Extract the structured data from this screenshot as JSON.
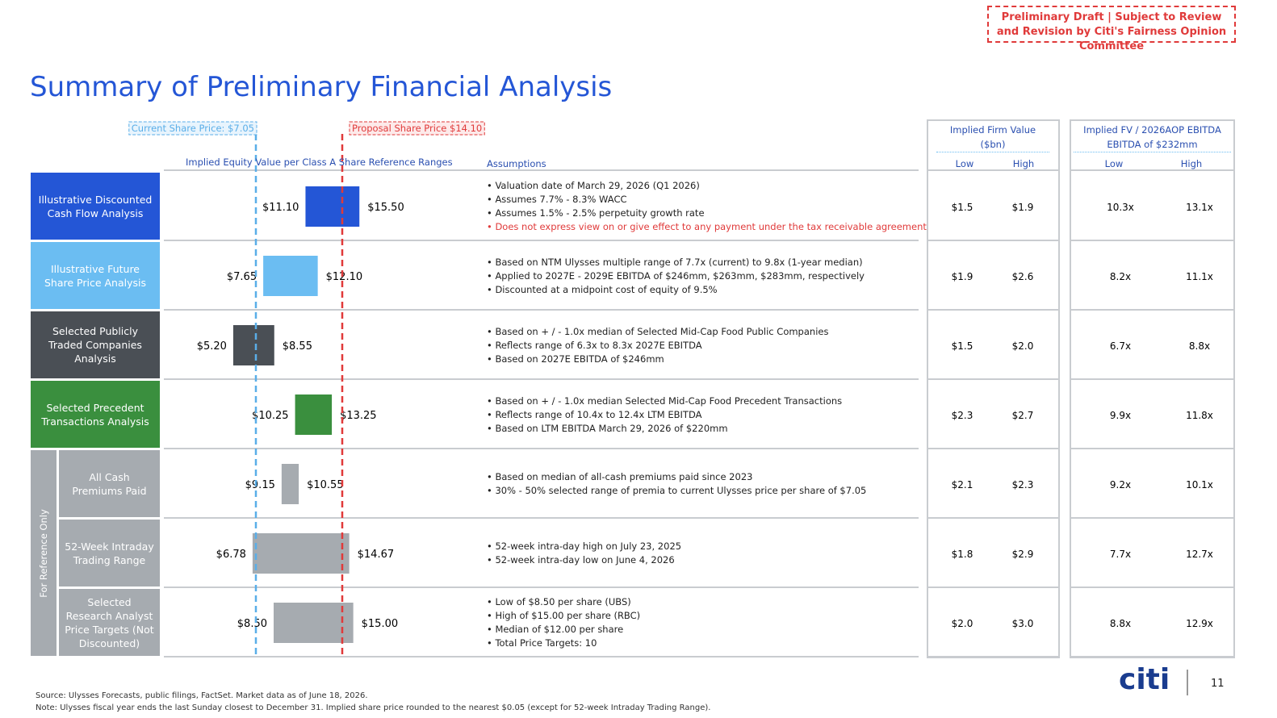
{
  "draft_note": "Preliminary Draft | Subject to Review and Revision by Citi's Fairness Opinion Committee",
  "title": "Summary of Preliminary Financial Analysis",
  "current_price": {
    "label": "Current Share Price: $7.05",
    "value": 7.05,
    "color": "#5aaee8"
  },
  "proposal_price": {
    "label": "Proposal Share Price $14.10",
    "value": 14.1,
    "color": "#e03a3a"
  },
  "xlim": [
    0,
    25.5
  ],
  "chart_header": "Implied Equity Value per Class A Share Reference Ranges",
  "assumptions_header": "Assumptions",
  "fv_header": "Implied Firm Value ($bn)",
  "multiple_header": [
    "Implied FV / 2026AOP EBITDA",
    "EBITDA of $232mm"
  ],
  "low_label": "Low",
  "high_label": "High",
  "reference_group": "For Reference Only",
  "rows": [
    {
      "label": "Illustrative Discounted Cash Flow Analysis",
      "color": "#2456d6",
      "low": 11.1,
      "high": 15.5,
      "low_label": "$11.10",
      "high_label": "$15.50",
      "assumptions": [
        "Valuation date of March 29, 2026 (Q1 2026)",
        "Assumes 7.7% - 8.3% WACC",
        "Assumes 1.5% - 2.5% perpetuity growth rate",
        {
          "text": "Does not express view on or give effect to any payment under the tax receivable agreement",
          "color": "#e03a3a"
        }
      ],
      "fv": [
        "$1.5",
        "$1.9"
      ],
      "multiple": [
        "10.3x",
        "13.1x"
      ]
    },
    {
      "label": "Illustrative Future Share Price Analysis",
      "color": "#6bbdf2",
      "low": 7.65,
      "high": 12.1,
      "low_label": "$7.65",
      "high_label": "$12.10",
      "assumptions": [
        "Based on NTM Ulysses multiple range of 7.7x (current) to 9.8x (1-year median)",
        "Applied to 2027E - 2029E EBITDA of $246mm, $263mm, $283mm, respectively",
        "Discounted at a midpoint cost of equity of 9.5%"
      ],
      "fv": [
        "$1.9",
        "$2.6"
      ],
      "multiple": [
        "8.2x",
        "11.1x"
      ]
    },
    {
      "label": "Selected Publicly Traded Companies Analysis",
      "color": "#4a4f55",
      "low": 5.2,
      "high": 8.55,
      "low_label": "$5.20",
      "high_label": "$8.55",
      "assumptions": [
        "Based on + / - 1.0x median of Selected Mid-Cap Food Public Companies",
        "Reflects range of 6.3x to 8.3x 2027E EBITDA",
        "Based on 2027E EBITDA of $246mm"
      ],
      "fv": [
        "$1.5",
        "$2.0"
      ],
      "multiple": [
        "6.7x",
        "8.8x"
      ]
    },
    {
      "label": "Selected Precedent Transactions Analysis",
      "color": "#3a8f3e",
      "low": 10.25,
      "high": 13.25,
      "low_label": "$10.25",
      "high_label": "$13.25",
      "assumptions": [
        "Based on + / - 1.0x median Selected Mid-Cap Food Precedent Transactions",
        "Reflects range of 10.4x to 12.4x LTM EBITDA",
        "Based on LTM EBITDA March 29, 2026 of $220mm"
      ],
      "fv": [
        "$2.3",
        "$2.7"
      ],
      "multiple": [
        "9.9x",
        "11.8x"
      ]
    },
    {
      "label": "All Cash Premiums Paid",
      "color": "#a6abb0",
      "reference": true,
      "low": 9.15,
      "high": 10.55,
      "low_label": "$9.15",
      "high_label": "$10.55",
      "assumptions": [
        "Based on median of all-cash premiums paid since 2023",
        "30% - 50% selected range of premia to current Ulysses price per share of $7.05"
      ],
      "fv": [
        "$2.1",
        "$2.3"
      ],
      "multiple": [
        "9.2x",
        "10.1x"
      ]
    },
    {
      "label": "52-Week Intraday Trading Range",
      "color": "#a6abb0",
      "reference": true,
      "low": 6.78,
      "high": 14.67,
      "low_label": "$6.78",
      "high_label": "$14.67",
      "assumptions": [
        "52-week intra-day high on July 23, 2025",
        "52-week intra-day low on June 4, 2026"
      ],
      "fv": [
        "$1.8",
        "$2.9"
      ],
      "multiple": [
        "7.7x",
        "12.7x"
      ]
    },
    {
      "label": "Selected Research Analyst Price Targets (Not Discounted)",
      "color": "#a6abb0",
      "reference": true,
      "low": 8.5,
      "high": 15.0,
      "low_label": "$8.50",
      "high_label": "$15.00",
      "assumptions": [
        "Low of $8.50 per share (UBS)",
        "High of $15.00 per share (RBC)",
        "Median of $12.00 per share",
        "Total Price Targets: 10"
      ],
      "fv": [
        "$2.0",
        "$3.0"
      ],
      "multiple": [
        "8.8x",
        "12.9x"
      ]
    }
  ],
  "footer": {
    "source": "Source: Ulysses Forecasts, public filings, FactSet. Market data as of June 18, 2026.",
    "note": "Note: Ulysses fiscal year ends the last Sunday closest to December 31. Implied share price rounded to the nearest $0.05 (except for 52-week Intraday Trading Range).",
    "logo": "citi",
    "page": "11"
  }
}
